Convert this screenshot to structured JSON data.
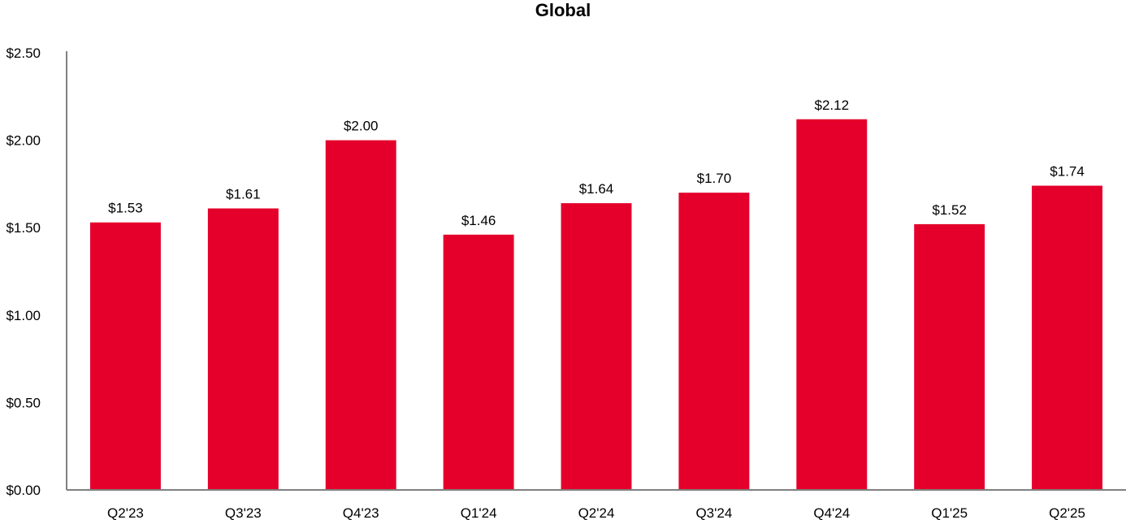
{
  "chart_data": {
    "type": "bar",
    "title": "Global",
    "xlabel": "",
    "ylabel": "",
    "categories": [
      "Q2'23",
      "Q3'23",
      "Q4'23",
      "Q1'24",
      "Q2'24",
      "Q3'24",
      "Q4'24",
      "Q1'25",
      "Q2'25"
    ],
    "values": [
      1.53,
      1.61,
      2.0,
      1.46,
      1.64,
      1.7,
      2.12,
      1.52,
      1.74
    ],
    "data_labels": [
      "$1.53",
      "$1.61",
      "$2.00",
      "$1.46",
      "$1.64",
      "$1.70",
      "$2.12",
      "$1.52",
      "$1.74"
    ],
    "yticks": [
      0,
      0.5,
      1.0,
      1.5,
      2.0,
      2.5
    ],
    "ytick_labels": [
      "$0.00",
      "$0.50",
      "$1.00",
      "$1.50",
      "$2.00",
      "$2.50"
    ],
    "ylim": [
      0,
      2.5
    ],
    "grid": false,
    "legend": "none",
    "bar_color": "#E4002B",
    "axis_color": "#808080"
  }
}
